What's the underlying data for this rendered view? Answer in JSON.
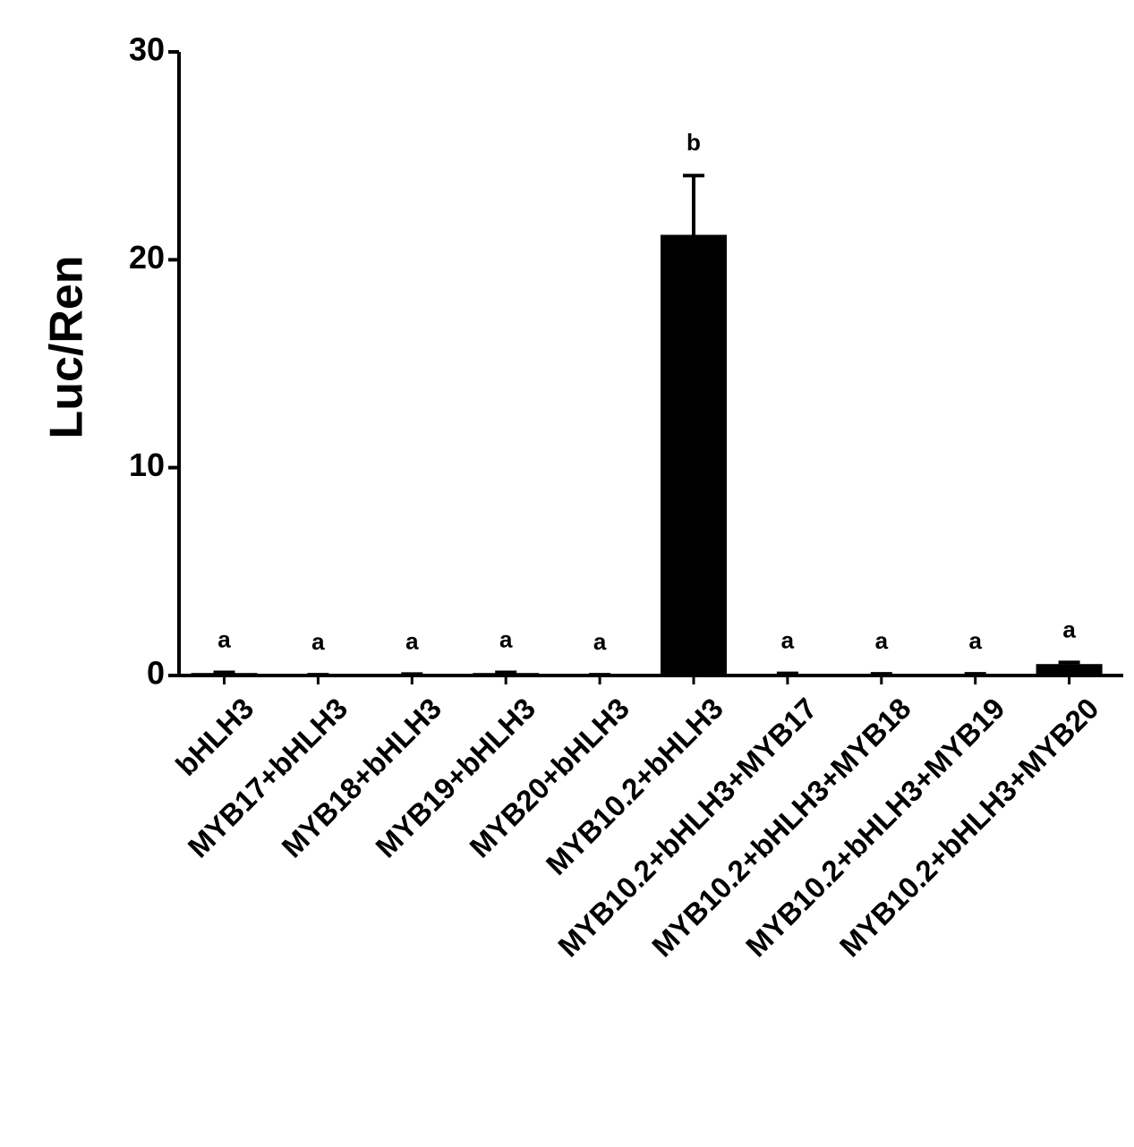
{
  "chart_data": {
    "type": "bar",
    "y_label": "Luc/Ren",
    "categories": [
      "bHLH3",
      "MYB17+bHLH3",
      "MYB18+bHLH3",
      "MYB19+bHLH3",
      "MYB20+bHLH3",
      "MYB10.2+bHLH3",
      "MYB10.2+bHLH3+MYB17",
      "MYB10.2+bHLH3+MYB18",
      "MYB10.2+bHLH3+MYB19",
      "MYB10.2+bHLH3+MYB20"
    ],
    "values": [
      0.12,
      0.03,
      0.05,
      0.12,
      0.03,
      21.2,
      0.08,
      0.06,
      0.06,
      0.55
    ],
    "errors": [
      0.03,
      0.01,
      0.02,
      0.03,
      0.01,
      2.85,
      0.02,
      0.02,
      0.02,
      0.08
    ],
    "annotations": [
      "a",
      "a",
      "a",
      "a",
      "a",
      "b",
      "a",
      "a",
      "a",
      "a"
    ],
    "color": "#000000",
    "ylim": [
      0,
      30
    ],
    "yticks": [
      0,
      10,
      20,
      30
    ]
  }
}
